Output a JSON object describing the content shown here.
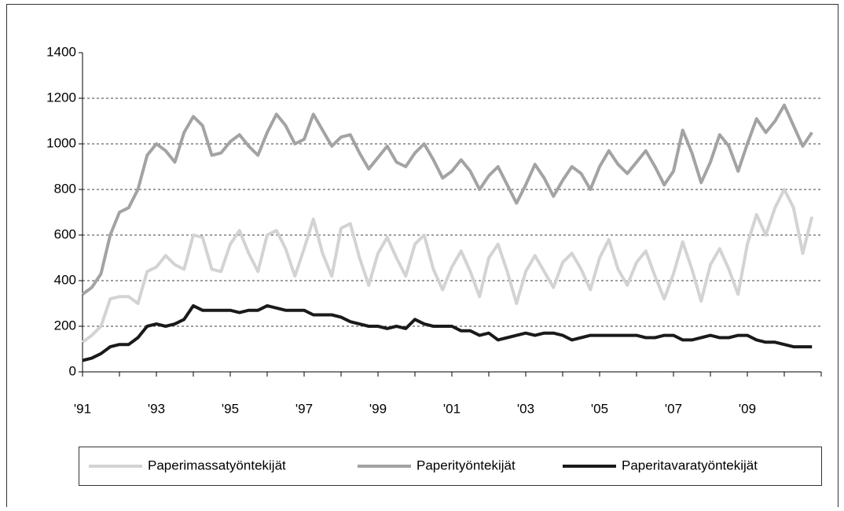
{
  "chart_data": {
    "type": "line",
    "categories": [
      "'91",
      null,
      null,
      null,
      null,
      null,
      null,
      null,
      "'93",
      null,
      null,
      null,
      null,
      null,
      null,
      null,
      "'95",
      null,
      null,
      null,
      null,
      null,
      null,
      null,
      "'97",
      null,
      null,
      null,
      null,
      null,
      null,
      null,
      "'99",
      null,
      null,
      null,
      null,
      null,
      null,
      null,
      "'01",
      null,
      null,
      null,
      null,
      null,
      null,
      null,
      "'03",
      null,
      null,
      null,
      null,
      null,
      null,
      null,
      "'05",
      null,
      null,
      null,
      null,
      null,
      null,
      null,
      "'07",
      null,
      null,
      null,
      null,
      null,
      null,
      null,
      "'09",
      null,
      null,
      null,
      null,
      null,
      null,
      null
    ],
    "series": [
      {
        "name": "Paperimassatyöntekijät",
        "color": "#d3d3d3",
        "values": [
          130,
          160,
          200,
          320,
          330,
          330,
          300,
          440,
          460,
          510,
          470,
          450,
          600,
          590,
          450,
          440,
          560,
          620,
          520,
          440,
          600,
          620,
          540,
          420,
          540,
          670,
          520,
          420,
          630,
          650,
          500,
          380,
          520,
          590,
          500,
          420,
          560,
          600,
          450,
          360,
          460,
          530,
          440,
          330,
          500,
          560,
          440,
          300,
          440,
          510,
          440,
          370,
          480,
          520,
          450,
          360,
          500,
          580,
          450,
          380,
          480,
          530,
          420,
          320,
          430,
          570,
          450,
          310,
          470,
          540,
          450,
          340,
          560,
          690,
          600,
          720,
          800,
          720,
          520,
          680
        ]
      },
      {
        "name": "Paperityöntekijät",
        "color": "#a3a3a3",
        "values": [
          340,
          370,
          430,
          600,
          700,
          720,
          800,
          950,
          1000,
          970,
          920,
          1050,
          1120,
          1080,
          950,
          960,
          1010,
          1040,
          990,
          950,
          1050,
          1130,
          1080,
          1000,
          1020,
          1130,
          1060,
          990,
          1030,
          1040,
          960,
          890,
          940,
          990,
          920,
          900,
          960,
          1000,
          930,
          850,
          880,
          930,
          880,
          800,
          860,
          900,
          820,
          740,
          820,
          910,
          850,
          770,
          840,
          900,
          870,
          800,
          900,
          970,
          910,
          870,
          920,
          970,
          900,
          820,
          880,
          1060,
          960,
          830,
          920,
          1040,
          990,
          880,
          1000,
          1110,
          1050,
          1100,
          1170,
          1080,
          990,
          1050
        ]
      },
      {
        "name": "Paperitavaratyöntekijät",
        "color": "#1a1a1a",
        "values": [
          50,
          60,
          80,
          110,
          120,
          120,
          150,
          200,
          210,
          200,
          210,
          230,
          290,
          270,
          270,
          270,
          270,
          260,
          270,
          270,
          290,
          280,
          270,
          270,
          270,
          250,
          250,
          250,
          240,
          220,
          210,
          200,
          200,
          190,
          200,
          190,
          230,
          210,
          200,
          200,
          200,
          180,
          180,
          160,
          170,
          140,
          150,
          160,
          170,
          160,
          170,
          170,
          160,
          140,
          150,
          160,
          160,
          160,
          160,
          160,
          160,
          150,
          150,
          160,
          160,
          140,
          140,
          150,
          160,
          150,
          150,
          160,
          160,
          140,
          130,
          130,
          120,
          110,
          110,
          110
        ]
      }
    ],
    "ylim": [
      0,
      1400
    ],
    "yticks": [
      0,
      200,
      400,
      600,
      800,
      1000,
      1200,
      1400
    ],
    "grid": true,
    "legend": "bottom"
  }
}
